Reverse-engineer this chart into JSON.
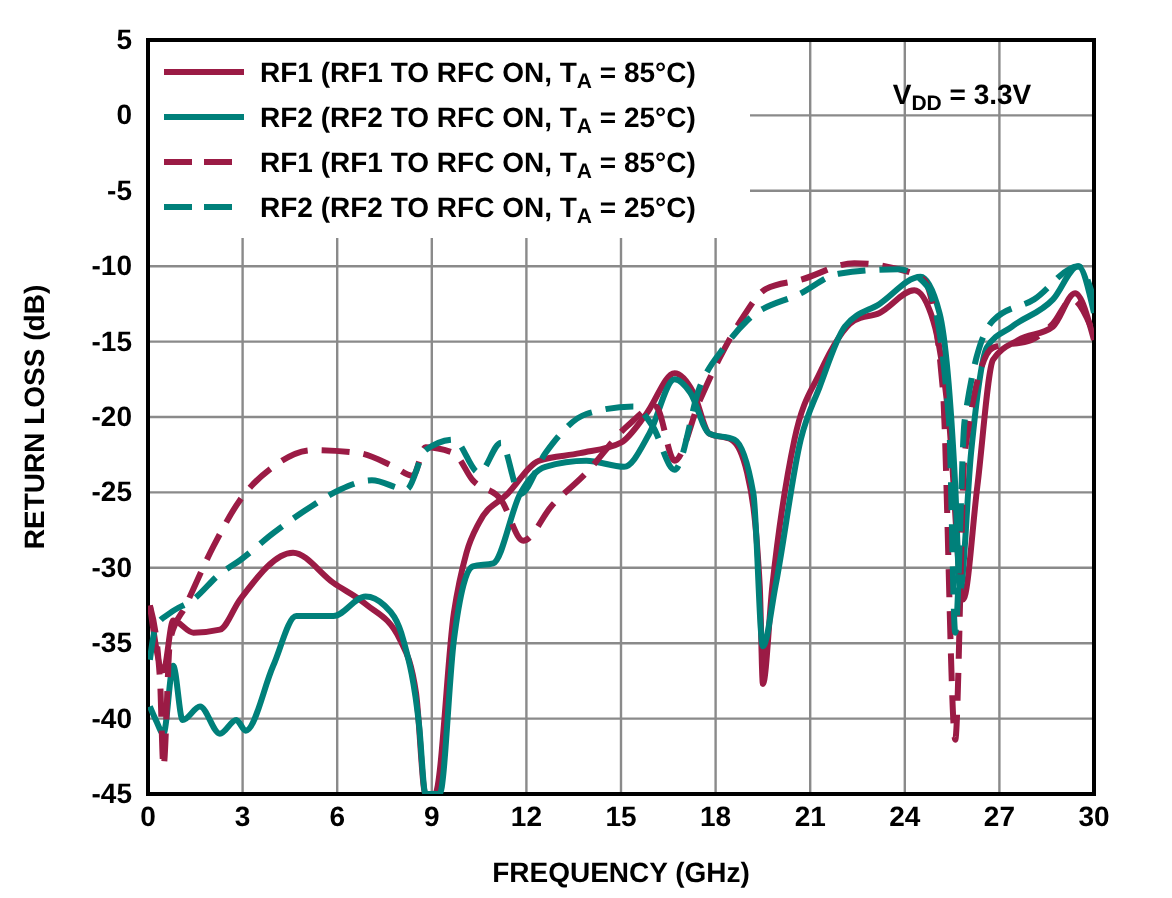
{
  "chart_data": {
    "type": "line",
    "xlabel": "FREQUENCY (GHz)",
    "ylabel": "RETURN LOSS (dB)",
    "xlim": [
      0,
      30
    ],
    "xticks": [
      0,
      3,
      6,
      9,
      12,
      15,
      18,
      21,
      24,
      27,
      30
    ],
    "ylim": [
      -45,
      5
    ],
    "yticks": [
      -45,
      -40,
      -35,
      -30,
      -25,
      -20,
      -15,
      -10,
      -5,
      0,
      5
    ],
    "grid": true,
    "legend": "top left",
    "annotations": [
      "V$_{DD}$ = 3.3V"
    ],
    "series": [
      {
        "name": "RF1 (RF1 TO RFC ON, T$_{A}$ = 85°C)",
        "color": "#9b1b45",
        "line_style": "solid",
        "x": [
          0.06,
          0.49,
          0.8,
          1.44,
          2.28,
          2.92,
          4.6,
          5.88,
          6.9,
          8,
          8.5,
          8.8,
          9.1,
          9.7,
          10.1,
          10.5,
          11.4,
          12.4,
          13.7,
          15,
          15.8,
          16.7,
          17.3,
          17.8,
          18.5,
          19,
          19.4,
          19.5,
          19.8,
          20.5,
          21.3,
          22.4,
          23.2,
          24.3,
          24.9,
          25.4,
          25.85,
          26.3,
          26.8,
          27.6,
          28.7,
          29.4,
          30
        ],
        "values": [
          -32.5,
          -36.8,
          -33.5,
          -34.3,
          -34.1,
          -32.1,
          -29,
          -31,
          -32.4,
          -34.8,
          -38.3,
          -45,
          -45,
          -33,
          -29,
          -27,
          -25.1,
          -22.9,
          -22.4,
          -21.7,
          -19.8,
          -17.1,
          -18.4,
          -21.1,
          -21.5,
          -23.7,
          -31.2,
          -37.7,
          -31.2,
          -21.5,
          -17.1,
          -13.6,
          -13.1,
          -11.6,
          -13.6,
          -20.2,
          -32.1,
          -24.6,
          -16.2,
          -14.9,
          -14,
          -11.8,
          -14.9
        ]
      },
      {
        "name": "RF2 (RF2 TO RFC ON, T$_{A}$ = 25°C)",
        "color": "#00807a",
        "line_style": "solid",
        "x": [
          0.06,
          0.25,
          0.49,
          0.8,
          1.1,
          1.65,
          2.28,
          2.8,
          3.1,
          3.97,
          4.7,
          5.88,
          6.9,
          7.5,
          8.1,
          8.6,
          8.8,
          9.25,
          9.7,
          10.3,
          10.95,
          11.8,
          12.6,
          13.9,
          15.1,
          15.9,
          16.7,
          17.2,
          17.8,
          18.6,
          19.2,
          19.5,
          19.9,
          20.7,
          21.3,
          22.1,
          23.2,
          24.5,
          25.1,
          25.6,
          25.75,
          26.1,
          26.6,
          27.4,
          28.7,
          29.5,
          30
        ],
        "values": [
          -39.2,
          -40.1,
          -41,
          -36.5,
          -40.1,
          -39.2,
          -41,
          -40.1,
          -40.8,
          -36.5,
          -33.2,
          -33.2,
          -31.9,
          -32.5,
          -34.8,
          -40.5,
          -45,
          -45,
          -34.8,
          -29.9,
          -29.7,
          -25.1,
          -23.3,
          -22.9,
          -23.3,
          -21.1,
          -17.5,
          -18.4,
          -21.1,
          -21.5,
          -25.1,
          -35.2,
          -31.2,
          -21.5,
          -18,
          -14,
          -12.5,
          -10.7,
          -13.1,
          -24.6,
          -31.5,
          -22.4,
          -15.4,
          -14,
          -12.2,
          -10,
          -13.1
        ]
      },
      {
        "name": "RF1 (RF1 TO RFC ON, T$_{A}$ = 85°C)",
        "color": "#9b1b45",
        "line_style": "dashed",
        "x": [
          0.06,
          0.38,
          0.49,
          0.7,
          1.2,
          2.07,
          2.92,
          3.97,
          5.2,
          6.7,
          7.8,
          8.4,
          8.8,
          9.7,
          10.3,
          11.2,
          11.9,
          12.8,
          13.9,
          15.2,
          16.1,
          16.7,
          17.5,
          18.1,
          18.8,
          19.6,
          20.7,
          22.4,
          23.8,
          24.6,
          25.2,
          25.6,
          25.9,
          26.8,
          28,
          28.7,
          29.3,
          30
        ],
        "values": [
          -32.5,
          -37.4,
          -43.2,
          -34.8,
          -32.5,
          -28.6,
          -25.5,
          -23.3,
          -22.2,
          -22.4,
          -23.3,
          -23.9,
          -22,
          -22.4,
          -24.2,
          -25.5,
          -28.2,
          -25.9,
          -23.7,
          -20.6,
          -19.3,
          -22.9,
          -18.9,
          -16.2,
          -13.6,
          -11.5,
          -10.9,
          -9.8,
          -10.2,
          -10.9,
          -18,
          -41.4,
          -22.4,
          -15.4,
          -14.9,
          -13.8,
          -12.2,
          -14.5
        ]
      },
      {
        "name": "RF2 (RF2 TO RFC ON, T$_{A}$ = 25°C)",
        "color": "#00807a",
        "line_style": "dashed",
        "x": [
          0.06,
          0.25,
          0.7,
          1.44,
          2.28,
          2.92,
          3.97,
          5.2,
          6.1,
          7.1,
          8.2,
          8.8,
          9.7,
          10.5,
          11.2,
          11.8,
          12.6,
          13.9,
          15.4,
          16,
          16.7,
          17.5,
          18.3,
          19,
          20.7,
          21.9,
          23.8,
          24.7,
          25.4,
          25.6,
          25.9,
          26.8,
          28.1,
          29.5,
          30
        ],
        "values": [
          -36.1,
          -33.9,
          -33,
          -32.1,
          -30.4,
          -29.5,
          -27.7,
          -25.9,
          -24.8,
          -24.2,
          -24.8,
          -22.2,
          -21.5,
          -23.7,
          -21.7,
          -25.1,
          -22.4,
          -19.8,
          -19.3,
          -20.6,
          -23.5,
          -18,
          -15.3,
          -13.6,
          -11.8,
          -10.5,
          -10.2,
          -11.3,
          -20.2,
          -34.3,
          -20.2,
          -13.6,
          -12.2,
          -10,
          -12.2
        ]
      }
    ]
  }
}
